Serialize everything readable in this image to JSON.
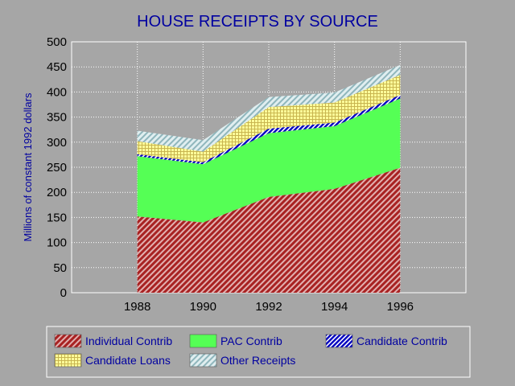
{
  "chart_data": {
    "type": "area",
    "stacked": true,
    "title": "HOUSE RECEIPTS BY SOURCE",
    "xlabel": "",
    "ylabel": "Millions of constant 1992 dollars",
    "x": [
      1988,
      1990,
      1992,
      1994,
      1996
    ],
    "x_tick_labels": [
      "1988",
      "1990",
      "1992",
      "1994",
      "1996"
    ],
    "xlim": [
      1986,
      1998
    ],
    "ylim": [
      0,
      500
    ],
    "y_ticks": [
      0,
      50,
      100,
      150,
      200,
      250,
      300,
      350,
      400,
      450,
      500
    ],
    "grid": true,
    "legend_position": "bottom",
    "series": [
      {
        "name": "Individual Contrib",
        "values": [
          152,
          140,
          191,
          207,
          249
        ],
        "color": "#b03030",
        "pattern": "diag-red"
      },
      {
        "name": "PAC Contrib",
        "values": [
          120,
          116,
          127,
          125,
          138
        ],
        "color": "#55ff55",
        "pattern": "solid-green"
      },
      {
        "name": "Candidate Contrib",
        "values": [
          4,
          4,
          9,
          7,
          7
        ],
        "color": "#0000c8",
        "pattern": "diag-blue"
      },
      {
        "name": "Candidate Loans",
        "values": [
          26,
          21,
          43,
          40,
          40
        ],
        "color": "#ffff99",
        "pattern": "grid-yellow"
      },
      {
        "name": "Other Receipts",
        "values": [
          21,
          23,
          20,
          20,
          20
        ],
        "color": "#b0ccd0",
        "pattern": "diag-teal"
      }
    ]
  }
}
